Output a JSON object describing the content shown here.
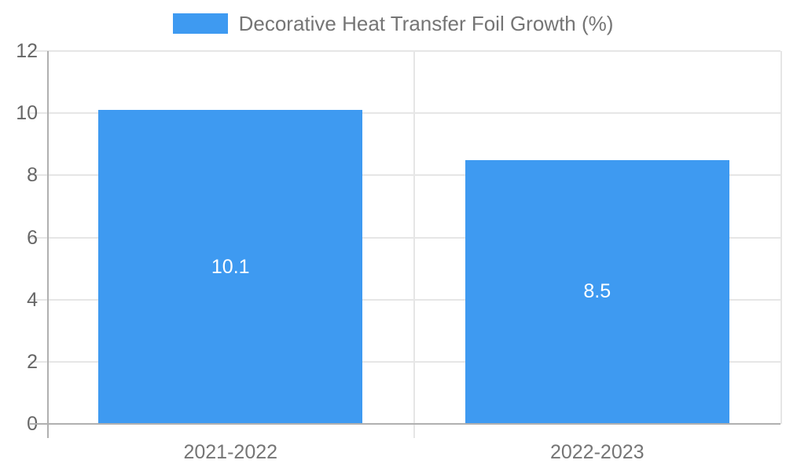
{
  "legend": {
    "label": "Decorative Heat Transfer Foil Growth (%)"
  },
  "chart_data": {
    "type": "bar",
    "title": "",
    "categories": [
      "2021-2022",
      "2022-2023"
    ],
    "series": [
      {
        "name": "Decorative Heat Transfer Foil Growth (%)",
        "values": [
          10.1,
          8.5
        ]
      }
    ],
    "data_labels": [
      "10.1",
      "8.5"
    ],
    "ylim": [
      0,
      12
    ],
    "yticks": [
      0,
      2,
      4,
      6,
      8,
      10,
      12
    ],
    "grid": true,
    "legend_position": "top",
    "bar_width_fraction": 0.72,
    "colors": {
      "bar": "#3E9AF1",
      "bar_label": "#FFFFFF",
      "gridline": "#E6E6E6",
      "axis_line": "#B0B0B0",
      "y_tick_text": "#666666",
      "x_tick_text": "#757575",
      "legend_text": "#757575"
    }
  }
}
